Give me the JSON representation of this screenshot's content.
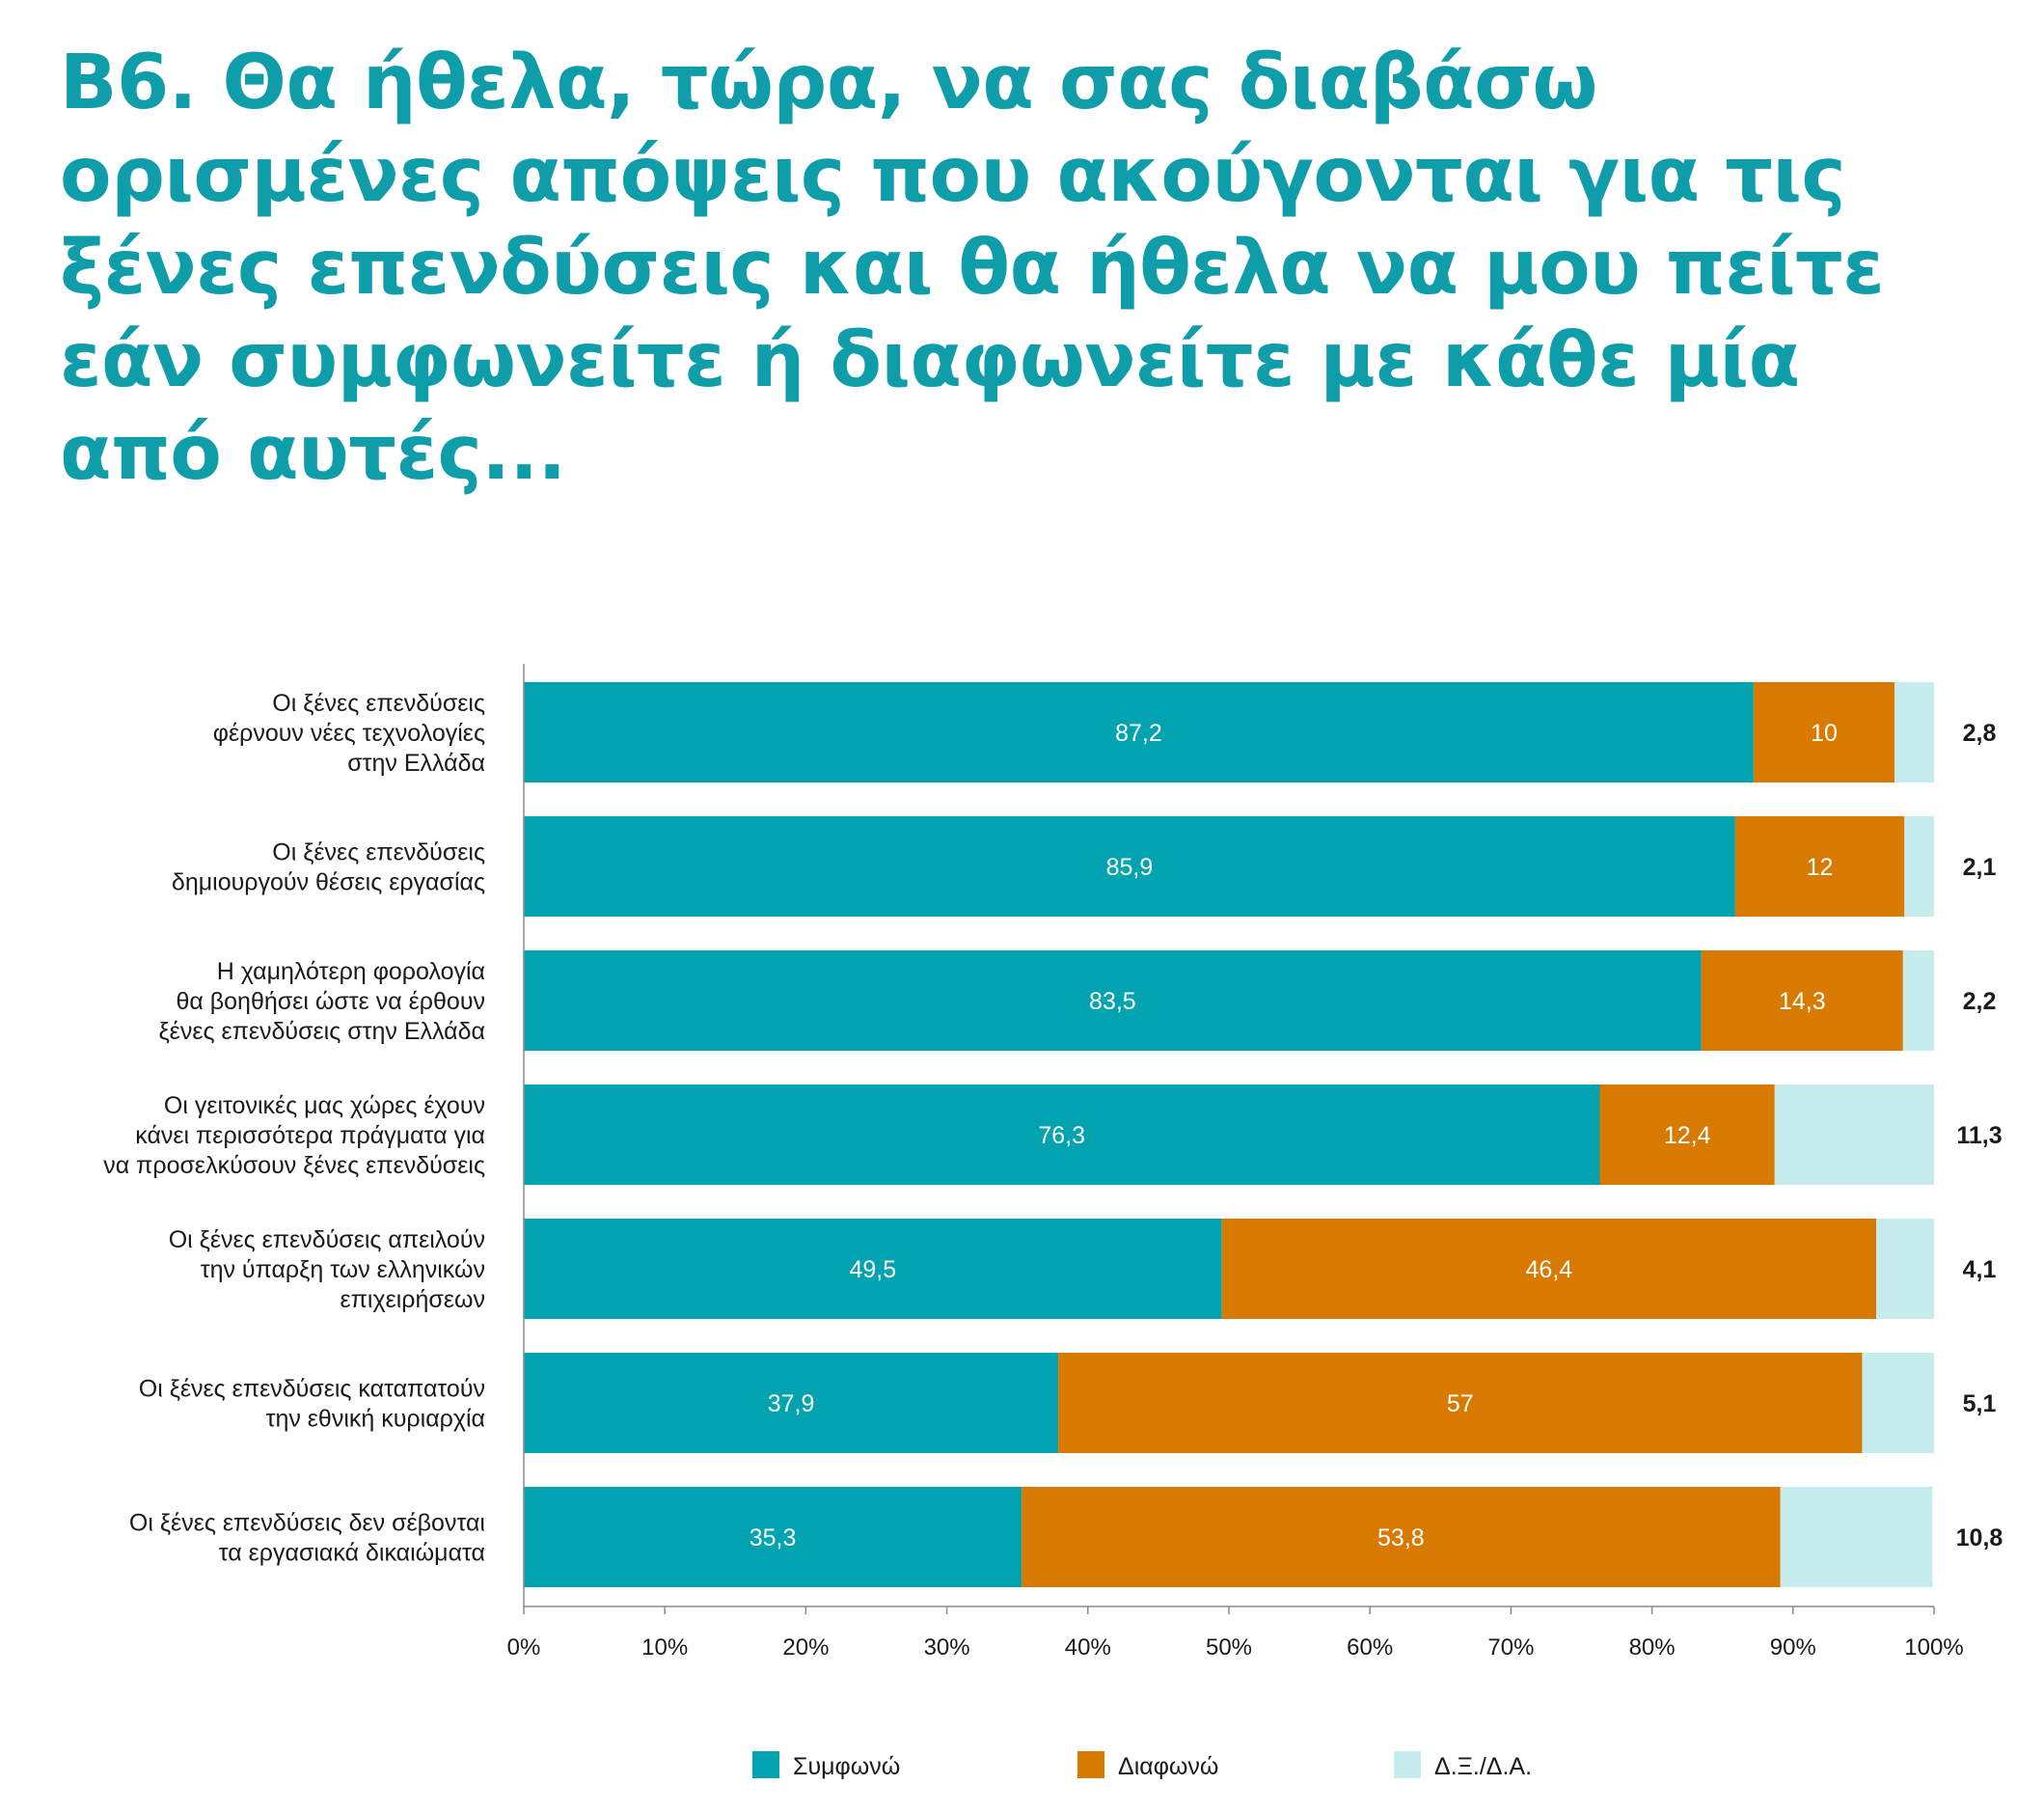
{
  "title_lines": [
    "Β6. Θα ήθελα, τώρα, να σας διαβάσω",
    "ορισμένες απόψεις που ακούγονται για τις",
    "ξένες επενδύσεις και θα ήθελα να μου πείτε",
    "εάν συμφωνείτε ή διαφωνείτε με κάθε μία",
    "από αυτές..."
  ],
  "colors": {
    "title": "#0f9ea9",
    "agree": "#00a3af",
    "disagree": "#d97a00",
    "dk": "#c6eced"
  },
  "chart_data": {
    "type": "bar",
    "orientation": "horizontal",
    "stacked": true,
    "xlim": [
      0,
      100
    ],
    "x_ticks": [
      "0%",
      "10%",
      "20%",
      "30%",
      "40%",
      "50%",
      "60%",
      "70%",
      "80%",
      "90%",
      "100%"
    ],
    "legend_position": "bottom",
    "grid": false,
    "categories": [
      [
        "Οι ξένες επενδύσεις",
        "φέρνουν νέες τεχνολογίες",
        "στην Ελλάδα"
      ],
      [
        "Οι ξένες επενδύσεις",
        "δημιουργούν θέσεις εργασίας"
      ],
      [
        "Η χαμηλότερη φορολογία",
        "θα βοηθήσει ώστε να έρθουν",
        "ξένες επενδύσεις στην Ελλάδα"
      ],
      [
        "Οι γειτονικές μας χώρες έχουν",
        "κάνει περισσότερα  πράγματα για",
        "να προσελκύσουν ξένες επενδύσεις"
      ],
      [
        "Οι ξένες επενδύσεις απειλούν",
        "την ύπαρξη των ελληνικών",
        "επιχειρήσεων"
      ],
      [
        "Οι ξένες επενδύσεις καταπατούν",
        "την εθνική κυριαρχία"
      ],
      [
        "Οι ξένες επενδύσεις δεν σέβονται",
        "τα εργασιακά δικαιώματα"
      ]
    ],
    "series": [
      {
        "name": "Συμφωνώ",
        "key": "agree",
        "values": [
          87.2,
          85.9,
          83.5,
          76.3,
          49.5,
          37.9,
          35.3
        ],
        "labels": [
          "87,2",
          "85,9",
          "83,5",
          "76,3",
          "49,5",
          "37,9",
          "35,3"
        ]
      },
      {
        "name": "Διαφωνώ",
        "key": "disagree",
        "values": [
          10,
          12,
          14.3,
          12.4,
          46.4,
          57,
          53.8
        ],
        "labels": [
          "10",
          "12",
          "14,3",
          "12,4",
          "46,4",
          "57",
          "53,8"
        ]
      },
      {
        "name": "Δ.Ξ./Δ.Α.",
        "key": "dk",
        "values": [
          2.8,
          2.1,
          2.2,
          11.3,
          4.1,
          5.1,
          10.8
        ],
        "labels": [
          "2,8",
          "2,1",
          "2,2",
          "11,3",
          "4,1",
          "5,1",
          "10,8"
        ]
      }
    ]
  }
}
